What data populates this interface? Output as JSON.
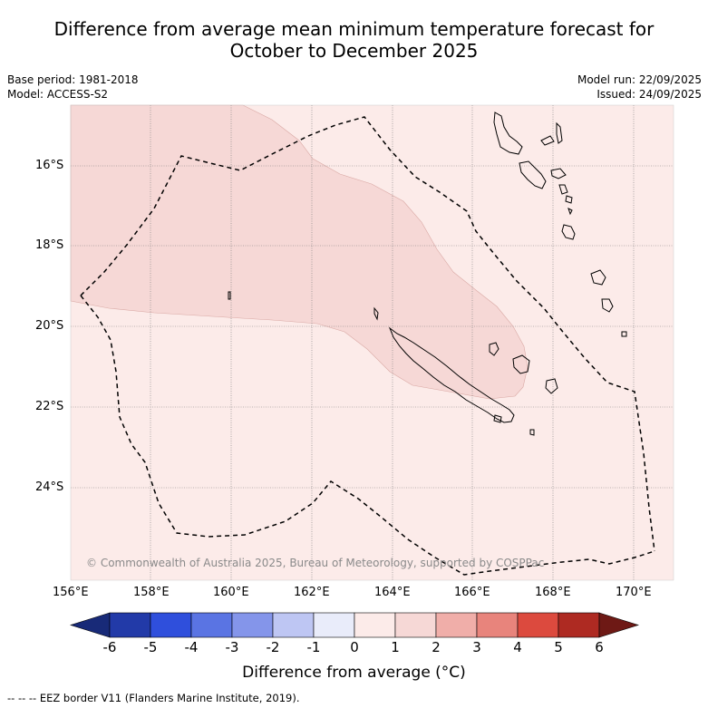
{
  "header": {
    "title_line1": "Difference from average mean minimum temperature forecast for",
    "title_line2": "October to December 2025",
    "base_period": "Base period: 1981-2018",
    "model": "Model: ACCESS-S2",
    "model_run": "Model run: 22/09/2025",
    "issued": "Issued: 24/09/2025"
  },
  "map": {
    "latitude_labels": [
      "16°S",
      "18°S",
      "20°S",
      "22°S",
      "24°S"
    ],
    "longitude_labels": [
      "156°E",
      "158°E",
      "160°E",
      "162°E",
      "164°E",
      "166°E",
      "168°E",
      "170°E"
    ],
    "copyright": "© Commonwealth of Australia 2025, Bureau of Meteorology, supported by COSPPac",
    "anomaly_regions": [
      {
        "range": "0 to 1",
        "color": "#fcebe9"
      },
      {
        "range": "1 to 2",
        "color": "#f6d8d6"
      }
    ]
  },
  "colorbar": {
    "tick_labels": [
      "-6",
      "-5",
      "-4",
      "-3",
      "-2",
      "-1",
      "0",
      "1",
      "2",
      "3",
      "4",
      "5",
      "6"
    ],
    "colors": [
      "#223aa8",
      "#2f4fdc",
      "#5a74e3",
      "#8495ea",
      "#bec6f3",
      "#e9ecfa",
      "#fcebe9",
      "#f6d8d6",
      "#f0aea9",
      "#e8847c",
      "#dc4a3e",
      "#ae2a22"
    ],
    "low_extend_color": "#182a78",
    "high_extend_color": "#6e1915",
    "label": "Difference from average (°C)"
  },
  "legend": {
    "eez": "--  --  -- EEZ border V11 (Flanders Marine Institute, 2019)."
  }
}
